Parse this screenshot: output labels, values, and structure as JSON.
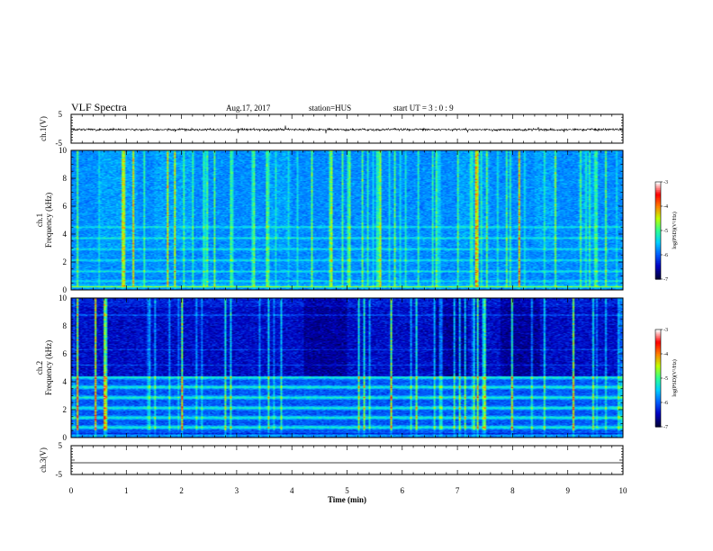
{
  "header": {
    "title": "VLF Spectra",
    "date": "Aug.17, 2017",
    "station": "station=HUS",
    "start": "start  UT =   3 : 0  : 9"
  },
  "colors": {
    "background": "#ffffff",
    "axes": "#000000",
    "colormap": [
      "#000040",
      "#0000c0",
      "#0060ff",
      "#00d0ff",
      "#30ff90",
      "#c0ff00",
      "#ff8000",
      "#ff0000",
      "#ffffff"
    ]
  },
  "chart_data": [
    {
      "type": "line",
      "name": "ch1-waveform",
      "ylabel": "ch.1(V)",
      "ylim": [
        -5,
        5
      ],
      "yticks": [
        "5",
        "-5"
      ],
      "xlim": [
        0,
        10
      ],
      "grid": false
    },
    {
      "type": "heatmap",
      "name": "ch1-spectrogram",
      "ylabel": "ch.1\nFrequency (kHz)",
      "ylim": [
        0,
        10
      ],
      "yticks": [
        "0",
        "2",
        "4",
        "6",
        "8",
        "10"
      ],
      "xlim": [
        0,
        10
      ],
      "colorbar": {
        "label": "log(PSD)(V²/Hz)",
        "range": [
          -7,
          -3
        ],
        "ticks": [
          "-3",
          "-4",
          "-5",
          "-6",
          "-7"
        ]
      }
    },
    {
      "type": "heatmap",
      "name": "ch2-spectrogram",
      "ylabel": "ch.2\nFrequency (kHz)",
      "ylim": [
        0,
        10
      ],
      "yticks": [
        "0",
        "2",
        "4",
        "6",
        "8",
        "10"
      ],
      "xlim": [
        0,
        10
      ],
      "colorbar": {
        "label": "log(PSD)(V²/Hz)",
        "range": [
          -7,
          -3
        ],
        "ticks": [
          "-3",
          "-4",
          "-5",
          "-6",
          "-7"
        ]
      }
    },
    {
      "type": "line",
      "name": "ch3-waveform",
      "ylabel": "ch.3(V)",
      "ylim": [
        -5,
        5
      ],
      "yticks": [
        "5",
        "-5"
      ],
      "xlabel": "Time  (min)",
      "xlim": [
        0,
        10
      ],
      "xticks": [
        "0",
        "1",
        "2",
        "3",
        "4",
        "5",
        "6",
        "7",
        "8",
        "9",
        "10"
      ],
      "grid": false
    }
  ]
}
